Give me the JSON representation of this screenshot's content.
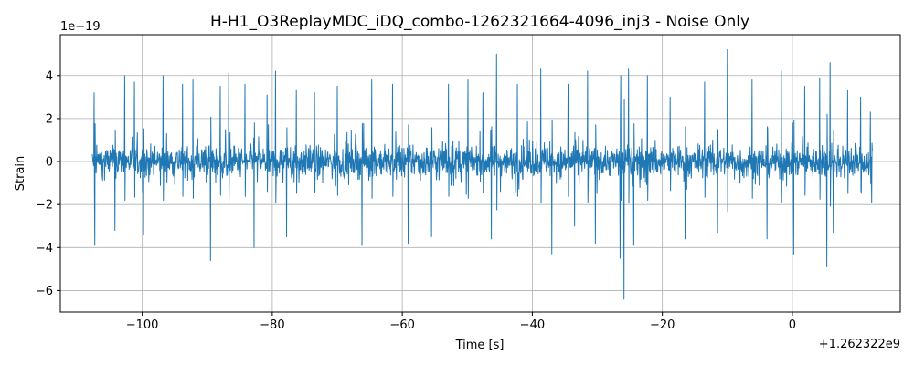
{
  "chart_data": {
    "type": "line",
    "title": "H-H1_O3ReplayMDC_iDQ_combo-1262321664-4096_inj3 - Noise Only",
    "xlabel": "Time [s]",
    "ylabel": "Strain",
    "x_offset_label": "+1.262322e9",
    "y_scale_label": "1e−19",
    "xlim": [
      -112.6,
      16.6
    ],
    "ylim": [
      -7.0,
      5.9
    ],
    "x_ticks": [
      -100,
      -80,
      -60,
      -40,
      -20,
      0
    ],
    "x_tick_labels": [
      "−100",
      "−80",
      "−60",
      "−40",
      "−20",
      "0"
    ],
    "y_ticks": [
      -6,
      -4,
      -2,
      0,
      2,
      4
    ],
    "y_tick_labels": [
      "−6",
      "−4",
      "−2",
      "0",
      "2",
      "4"
    ],
    "grid": true,
    "series": [
      {
        "color": "#1f77b4",
        "x_start": -107.7,
        "x_end": 12.3,
        "typical_envelope": 1.2,
        "peaks": [
          {
            "x": -107.4,
            "y": 3.2
          },
          {
            "x": -107.3,
            "y": -3.9
          },
          {
            "x": -104.2,
            "y": -3.2
          },
          {
            "x": -102.7,
            "y": 4.0
          },
          {
            "x": -101.2,
            "y": 3.7
          },
          {
            "x": -99.8,
            "y": -3.4
          },
          {
            "x": -96.8,
            "y": 4.0
          },
          {
            "x": -93.8,
            "y": 3.6
          },
          {
            "x": -92.2,
            "y": 3.8
          },
          {
            "x": -89.5,
            "y": -4.6
          },
          {
            "x": -88.0,
            "y": 3.5
          },
          {
            "x": -86.7,
            "y": 4.1
          },
          {
            "x": -84.2,
            "y": 3.6
          },
          {
            "x": -82.8,
            "y": -4.0
          },
          {
            "x": -80.8,
            "y": 3.1
          },
          {
            "x": -79.5,
            "y": 4.2
          },
          {
            "x": -77.8,
            "y": -3.5
          },
          {
            "x": -76.3,
            "y": 3.3
          },
          {
            "x": -73.5,
            "y": 3.2
          },
          {
            "x": -70.0,
            "y": 3.5
          },
          {
            "x": -66.2,
            "y": -3.9
          },
          {
            "x": -64.7,
            "y": 3.8
          },
          {
            "x": -61.5,
            "y": 3.6
          },
          {
            "x": -59.1,
            "y": -3.8
          },
          {
            "x": -55.5,
            "y": -3.5
          },
          {
            "x": -52.9,
            "y": 3.6
          },
          {
            "x": -49.9,
            "y": 3.8
          },
          {
            "x": -47.6,
            "y": 3.2
          },
          {
            "x": -46.3,
            "y": -3.6
          },
          {
            "x": -45.5,
            "y": 5.0
          },
          {
            "x": -42.3,
            "y": 3.6
          },
          {
            "x": -38.7,
            "y": 4.3
          },
          {
            "x": -37.0,
            "y": -4.3
          },
          {
            "x": -34.5,
            "y": 3.6
          },
          {
            "x": -33.5,
            "y": -3.0
          },
          {
            "x": -31.5,
            "y": 4.2
          },
          {
            "x": -30.3,
            "y": -3.8
          },
          {
            "x": -26.5,
            "y": -4.5
          },
          {
            "x": -26.4,
            "y": 4.0
          },
          {
            "x": -25.9,
            "y": -6.4
          },
          {
            "x": -25.2,
            "y": 4.3
          },
          {
            "x": -24.4,
            "y": -3.9
          },
          {
            "x": -22.3,
            "y": 4.0
          },
          {
            "x": -18.8,
            "y": 3.0
          },
          {
            "x": -16.5,
            "y": -3.6
          },
          {
            "x": -13.5,
            "y": 3.7
          },
          {
            "x": -11.5,
            "y": -3.3
          },
          {
            "x": -10.0,
            "y": 5.2
          },
          {
            "x": -6.2,
            "y": 3.8
          },
          {
            "x": -3.9,
            "y": -3.6
          },
          {
            "x": -1.7,
            "y": 4.2
          },
          {
            "x": 0.2,
            "y": -4.3
          },
          {
            "x": 1.9,
            "y": 3.5
          },
          {
            "x": 4.2,
            "y": 3.9
          },
          {
            "x": 5.3,
            "y": -4.9
          },
          {
            "x": 5.8,
            "y": 4.6
          },
          {
            "x": 6.3,
            "y": -3.3
          },
          {
            "x": 8.5,
            "y": 3.3
          },
          {
            "x": 10.5,
            "y": 3.0
          },
          {
            "x": 12.0,
            "y": 2.3
          },
          {
            "x": 12.2,
            "y": -1.9
          }
        ]
      }
    ]
  }
}
